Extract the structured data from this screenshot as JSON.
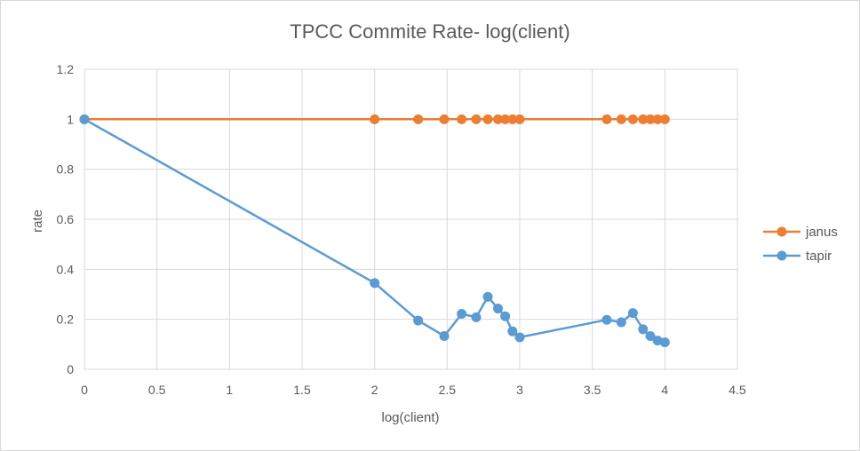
{
  "chart_data": {
    "type": "line",
    "title": "TPCC Commite Rate- log(client)",
    "xlabel": "log(client)",
    "ylabel": "rate",
    "xlim": [
      0,
      4.5
    ],
    "ylim": [
      0,
      1.2
    ],
    "xticks": [
      "0",
      "0.5",
      "1",
      "1.5",
      "2",
      "2.5",
      "3",
      "3.5",
      "4",
      "4.5"
    ],
    "yticks": [
      "0",
      "0.2",
      "0.4",
      "0.6",
      "0.8",
      "1",
      "1.2"
    ],
    "grid": true,
    "legend_position": "right",
    "series": [
      {
        "name": "janus",
        "color": "#ED7D31",
        "points": [
          [
            0,
            1
          ],
          [
            2,
            1
          ],
          [
            2.3,
            1
          ],
          [
            2.48,
            1
          ],
          [
            2.6,
            1
          ],
          [
            2.7,
            1
          ],
          [
            2.78,
            1
          ],
          [
            2.85,
            1
          ],
          [
            2.9,
            1
          ],
          [
            2.95,
            1
          ],
          [
            3,
            1
          ],
          [
            3.6,
            1
          ],
          [
            3.7,
            1
          ],
          [
            3.78,
            1
          ],
          [
            3.85,
            1
          ],
          [
            3.9,
            1
          ],
          [
            3.95,
            1
          ],
          [
            4,
            1
          ]
        ]
      },
      {
        "name": "tapir",
        "color": "#5B9BD5",
        "points": [
          [
            0,
            1
          ],
          [
            2,
            0.345
          ],
          [
            2.3,
            0.195
          ],
          [
            2.48,
            0.133
          ],
          [
            2.6,
            0.222
          ],
          [
            2.7,
            0.208
          ],
          [
            2.78,
            0.29
          ],
          [
            2.85,
            0.243
          ],
          [
            2.9,
            0.212
          ],
          [
            2.95,
            0.152
          ],
          [
            3,
            0.128
          ],
          [
            3.6,
            0.198
          ],
          [
            3.7,
            0.188
          ],
          [
            3.78,
            0.225
          ],
          [
            3.85,
            0.16
          ],
          [
            3.9,
            0.133
          ],
          [
            3.95,
            0.115
          ],
          [
            4,
            0.108
          ]
        ]
      }
    ]
  }
}
